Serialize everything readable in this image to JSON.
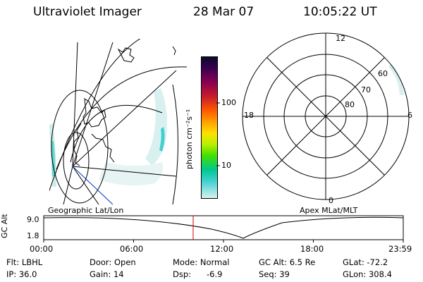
{
  "header": {
    "instrument": "Ultraviolet Imager",
    "date": "28 Mar 07",
    "time": "10:05:22 UT"
  },
  "geo_panel": {
    "label": "Geographic Lat/Lon"
  },
  "polar_panel": {
    "label": "Apex MLat/MLT",
    "mlt_labels": {
      "top": "12",
      "right": "6",
      "bottom": "0",
      "left": "18"
    },
    "lat_labels": [
      "60",
      "70",
      "80"
    ]
  },
  "colorbar": {
    "unit_label": "photon cm⁻²s⁻¹",
    "ticks": [
      "100",
      "10"
    ],
    "colors": [
      "#0b0b2a",
      "#3a0050",
      "#8a0050",
      "#c81c2c",
      "#ff5a00",
      "#ffa000",
      "#ffe000",
      "#b8f000",
      "#40e000",
      "#00c890",
      "#40d0d0",
      "#d8f0f0"
    ]
  },
  "altitude_plot": {
    "ylabel": "GC Alt",
    "yticks": [
      "9.0",
      "1.8"
    ],
    "xticks": [
      "00:00",
      "06:00",
      "12:00",
      "18:00",
      "23:59"
    ],
    "marker_color": "#d00000"
  },
  "info": {
    "filter": "Flt: LBHL",
    "ip": "IP: 36.0",
    "door": "Door: Open",
    "gain": "Gain: 14",
    "mode": "Mode: Normal",
    "dsp_label": "Dsp:",
    "dsp_value": "-6.9",
    "gc_alt": "GC Alt: 6.5 Re",
    "seq": "Seq: 39",
    "glat": "GLat: -72.2",
    "glon": "GLon: 308.4"
  }
}
